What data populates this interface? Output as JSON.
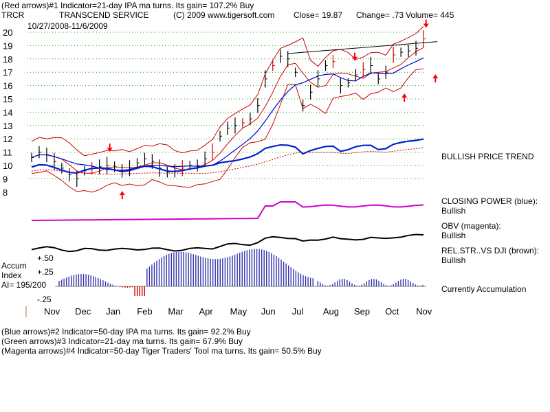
{
  "header": {
    "line1": "(Red arrows)#1 Indicator=21-day IPA ma turns.  Its gain= 107.2% Buy",
    "symbol": "TRCR",
    "company": "TRANSCEND SERVICE",
    "copyright": "(C) 2009 www.tigersoft.com",
    "close": "Close=  19.87",
    "change": "Change= .73",
    "volume": "Volume= 445",
    "date_range": "10/27/2008-11/6/2009"
  },
  "panels": {
    "price_trend": "BULLISH PRICE TREND",
    "closing_power_label": "CLOSING POWER (blue):",
    "closing_power_value": "Bullish",
    "obv_label": "OBV (magenta):",
    "obv_value": "Bullish",
    "relstr_label": "REL.STR..VS DJI (brown):",
    "relstr_value": "Bullish",
    "accum_status": "Currently Accumulation",
    "accum_title1": "Accum",
    "accum_title2": "Index",
    "accum_ai": "AI= 195/200"
  },
  "footer": {
    "line1": "(Blue arrows)#2 Indicator=50-day IPA ma turns.  Its gain= 92.2% Buy",
    "line2": "(Green arrows)#3 Indicator=21-day ma turns.  Its gain= 67.9% Buy",
    "line3": "(Magenta arrows)#4 Indicator=50-day Tiger Traders' Tool ma turns.  Its gain= 50.5% Buy"
  },
  "colors": {
    "price_bars": "#000000",
    "up_day": "#cc0000",
    "bollinger": "#cc0000",
    "ma21": "#dd0000",
    "ma50": "#0000cc",
    "closing_power": "#0022cc",
    "obv": "#cc00cc",
    "relstr": "#000000",
    "accum_bars": "#3333aa",
    "grid": "#00aa00",
    "signal_arrow": "#ff0000"
  },
  "chart_data": {
    "type": "line",
    "title": "TRANSCEND SERVICE",
    "xlabel": "",
    "ylabel": "",
    "ylim": [
      8,
      20
    ],
    "y_ticks": [
      "20",
      "19",
      "18",
      "17",
      "16",
      "15",
      "14",
      "13",
      "12",
      "11",
      "10",
      "9",
      "8"
    ],
    "accum_ticks": [
      "+.50",
      "+.25",
      "-.25"
    ],
    "x_ticks": [
      "Nov",
      "Dec",
      "Jan",
      "Feb",
      "Mar",
      "Apr",
      "May",
      "Jun",
      "Jul",
      "Aug",
      "Sep",
      "Oct",
      "Nov"
    ],
    "series": [
      {
        "values": [
          10.6,
          11.0,
          10.8,
          10.3,
          9.8,
          9.3,
          9.0,
          9.6,
          9.8,
          9.9,
          10.0,
          9.9,
          9.6,
          9.8,
          10.2,
          10.5,
          10.3,
          9.8,
          9.5,
          9.6,
          9.8,
          10.0,
          10.0,
          10.5,
          11.0,
          12.2,
          12.8,
          13.0,
          13.2,
          13.5,
          14.5,
          16.5,
          17.5,
          18.2,
          18.0,
          17.0,
          14.5,
          15.5,
          16.5,
          17.5,
          17.8,
          16.0,
          16.2,
          16.8,
          17.2,
          17.5,
          16.5,
          17.0,
          18.3,
          18.5,
          18.6,
          18.8,
          19.5
        ]
      }
    ],
    "signals_up_month_positions": [
      2.3,
      11.4,
      12.4
    ],
    "signals_down_month_positions": [
      1.9,
      9.8,
      12.1
    ]
  }
}
